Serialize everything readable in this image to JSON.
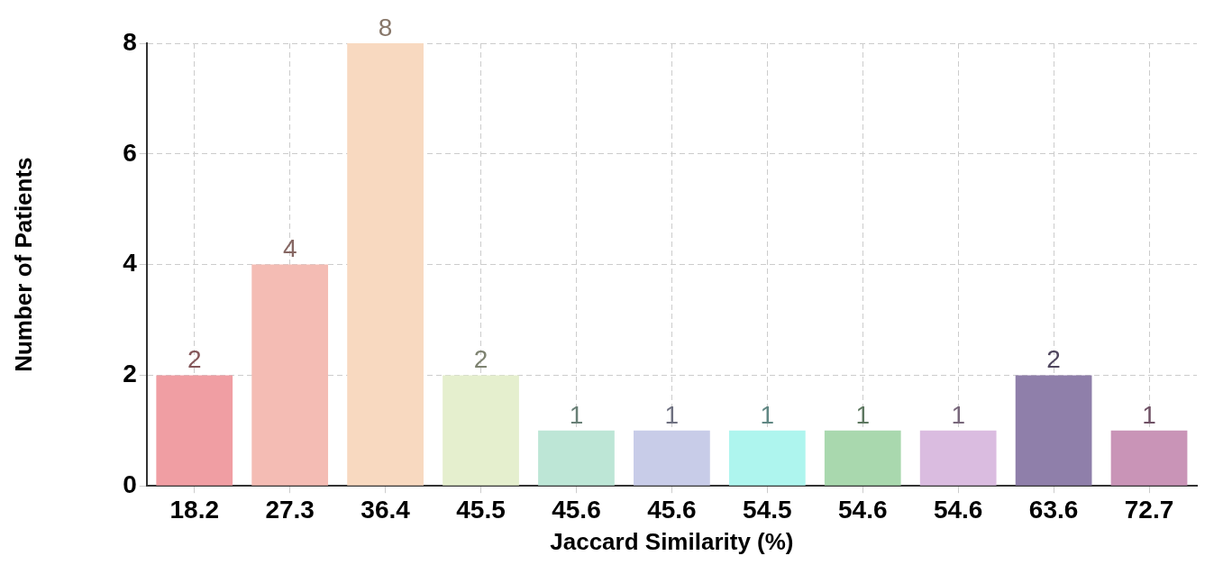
{
  "chart_data": {
    "type": "bar",
    "xlabel": "Jaccard Similarity (%)",
    "ylabel": "Number of Patients",
    "categories": [
      "18.2",
      "27.3",
      "36.4",
      "45.5",
      "45.6",
      "45.6",
      "54.5",
      "54.6",
      "54.6",
      "63.6",
      "72.7"
    ],
    "values": [
      2,
      4,
      8,
      2,
      1,
      1,
      1,
      1,
      1,
      2,
      1
    ],
    "colors": [
      "#f09ea3",
      "#f4bcb4",
      "#f8d9c0",
      "#e5efce",
      "#bde6d6",
      "#c8cce8",
      "#aef5ee",
      "#a9d8ae",
      "#dabce0",
      "#8f7faa",
      "#c994b7"
    ],
    "ylim": [
      0,
      8
    ],
    "yticks": [
      0,
      2,
      4,
      6,
      8
    ],
    "grid": true,
    "data_labels": true,
    "legend": false
  }
}
